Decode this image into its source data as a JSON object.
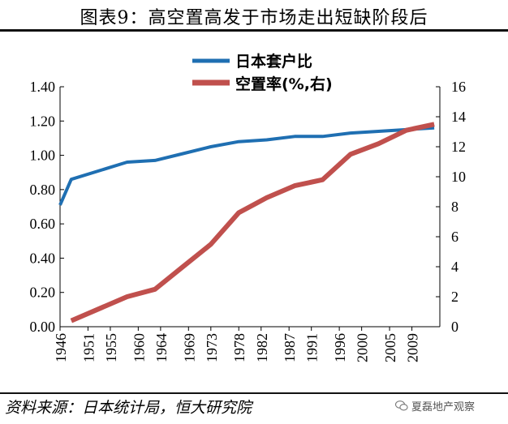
{
  "figure_title": "图表9：高空置高发于市场走出短缺阶段后",
  "source_note": "资料来源：日本统计局，恒大研究院",
  "watermark": {
    "text": "夏磊地产观察",
    "icon": "wechat-icon"
  },
  "colors": {
    "ratio_line": "#1F6FB2",
    "vacancy_line": "#C0504D",
    "axis": "#000000"
  },
  "chart_data": {
    "type": "line",
    "title": "",
    "x": [
      "1946",
      "1951",
      "1955",
      "1960",
      "1964",
      "1969",
      "1973",
      "1978",
      "1982",
      "1987",
      "1991",
      "1996",
      "2000",
      "2005",
      "2009"
    ],
    "xlim": [
      1946,
      2014
    ],
    "xlabel": "",
    "left_axis": {
      "ylim": [
        0,
        1.4
      ],
      "ticks": [
        "1.40",
        "1.20",
        "1.00",
        "0.80",
        "0.60",
        "0.40",
        "0.20",
        "0.00"
      ]
    },
    "right_axis": {
      "ylim": [
        0,
        16
      ],
      "ticks": [
        "16",
        "14",
        "12",
        "10",
        "8",
        "6",
        "4",
        "2",
        "0"
      ]
    },
    "legend_position": "top-center",
    "series": [
      {
        "name": "日本套户比",
        "axis": "left",
        "points": [
          [
            1946,
            0.71
          ],
          [
            1948,
            0.86
          ],
          [
            1958,
            0.96
          ],
          [
            1963,
            0.97
          ],
          [
            1968,
            1.01
          ],
          [
            1973,
            1.05
          ],
          [
            1978,
            1.08
          ],
          [
            1983,
            1.09
          ],
          [
            1988,
            1.11
          ],
          [
            1993,
            1.11
          ],
          [
            1998,
            1.13
          ],
          [
            2003,
            1.14
          ],
          [
            2008,
            1.15
          ],
          [
            2013,
            1.16
          ]
        ]
      },
      {
        "name": "空置率(%,右)",
        "axis": "right",
        "points": [
          [
            1948,
            0.4
          ],
          [
            1958,
            2.0
          ],
          [
            1963,
            2.5
          ],
          [
            1968,
            4.0
          ],
          [
            1973,
            5.5
          ],
          [
            1978,
            7.6
          ],
          [
            1983,
            8.6
          ],
          [
            1988,
            9.4
          ],
          [
            1993,
            9.8
          ],
          [
            1998,
            11.5
          ],
          [
            2003,
            12.2
          ],
          [
            2008,
            13.1
          ],
          [
            2013,
            13.5
          ]
        ]
      }
    ]
  }
}
